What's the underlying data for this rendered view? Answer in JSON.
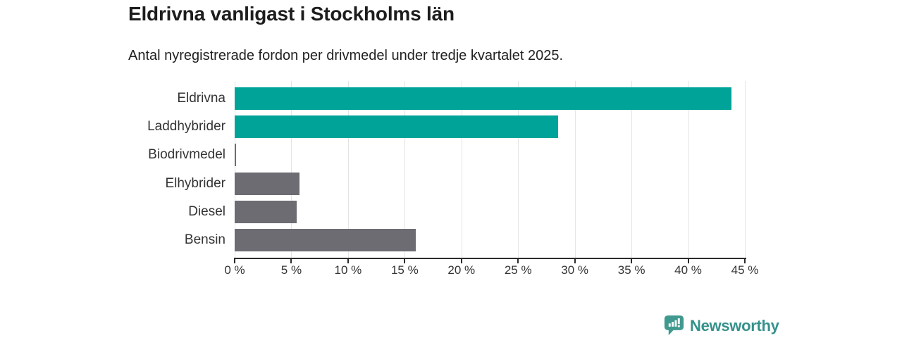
{
  "header": {
    "title": "Eldrivna vanligast i Stockholms län",
    "subtitle": "Antal nyregistrerade fordon per drivmedel under tredje kvartalet 2025."
  },
  "chart_data": {
    "type": "bar",
    "orientation": "horizontal",
    "title": "Eldrivna vanligast i Stockholms län",
    "subtitle": "Antal nyregistrerade fordon per drivmedel under tredje kvartalet 2025.",
    "categories": [
      "Eldrivna",
      "Laddhybrider",
      "Biodrivmedel",
      "Elhybrider",
      "Diesel",
      "Bensin"
    ],
    "values": [
      43.8,
      28.5,
      0.1,
      5.7,
      5.5,
      16.0
    ],
    "unit": "%",
    "bar_colors": [
      "#00a398",
      "#00a398",
      "#6d6c72",
      "#6d6c72",
      "#6d6c72",
      "#6d6c72"
    ],
    "xlim": [
      0,
      45
    ],
    "x_tick_values": [
      0,
      5,
      10,
      15,
      20,
      25,
      30,
      35,
      40,
      45
    ],
    "x_tick_labels": [
      "0 %",
      "5 %",
      "10 %",
      "15 %",
      "20 %",
      "25 %",
      "30 %",
      "35 %",
      "40 %",
      "45 %"
    ],
    "xlabel": "",
    "ylabel": "",
    "grid": "vertical-only",
    "legend": "none"
  },
  "branding": {
    "logo_text": "Newsworthy",
    "logo_icon": "newsworthy-speech-bubble-chart-icon"
  },
  "colors": {
    "accent_teal": "#00a398",
    "neutral_gray": "#6d6c72",
    "gridline": "#e4e4e4",
    "axis": "#2b2b2b",
    "title_text": "#1d1d1d",
    "label_text": "#333333",
    "logo_icon": "#40998f",
    "logo_text": "#35918b"
  }
}
